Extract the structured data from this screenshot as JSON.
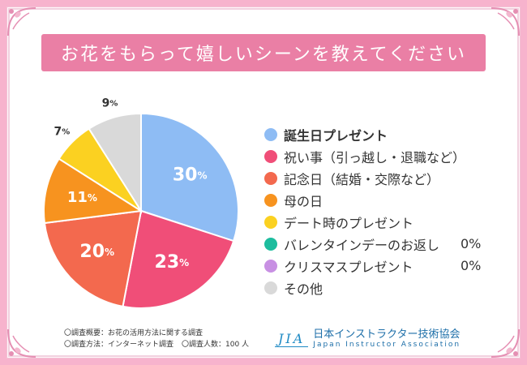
{
  "title": "お花をもらって嬉しいシーンを教えてください",
  "chart_data": {
    "type": "pie",
    "title": "お花をもらって嬉しいシーンを教えてください",
    "slices": [
      {
        "label": "誕生日プレゼント",
        "value": 30,
        "display": "30",
        "color": "#8ebcf4"
      },
      {
        "label": "祝い事（引っ越し・退職など）",
        "value": 23,
        "display": "23",
        "color": "#f04e78"
      },
      {
        "label": "記念日（結婚・交際など）",
        "value": 20,
        "display": "20",
        "color": "#f3694e"
      },
      {
        "label": "母の日",
        "value": 11,
        "display": "11",
        "color": "#f7931f"
      },
      {
        "label": "デート時のプレゼント",
        "value": 7,
        "display": "7",
        "color": "#fbd121"
      },
      {
        "label": "バレンタインデーのお返し",
        "value": 0,
        "display": "0%",
        "color": "#1dbd9e"
      },
      {
        "label": "クリスマスプレゼント",
        "value": 0,
        "display": "0%",
        "color": "#c890e3"
      },
      {
        "label": "その他",
        "value": 9,
        "display": "9",
        "color": "#d9d9d9"
      }
    ],
    "unit": "%"
  },
  "notes": {
    "overview": "〇調査概要：お花の活用方法に関する調査",
    "method": "〇調査方法：インターネット調査",
    "respondents": "〇調査人数：100 人"
  },
  "logo": {
    "mark": "JIA",
    "name_jp": "日本インストラクター技術協会",
    "name_en": "Japan Instructor Association"
  }
}
